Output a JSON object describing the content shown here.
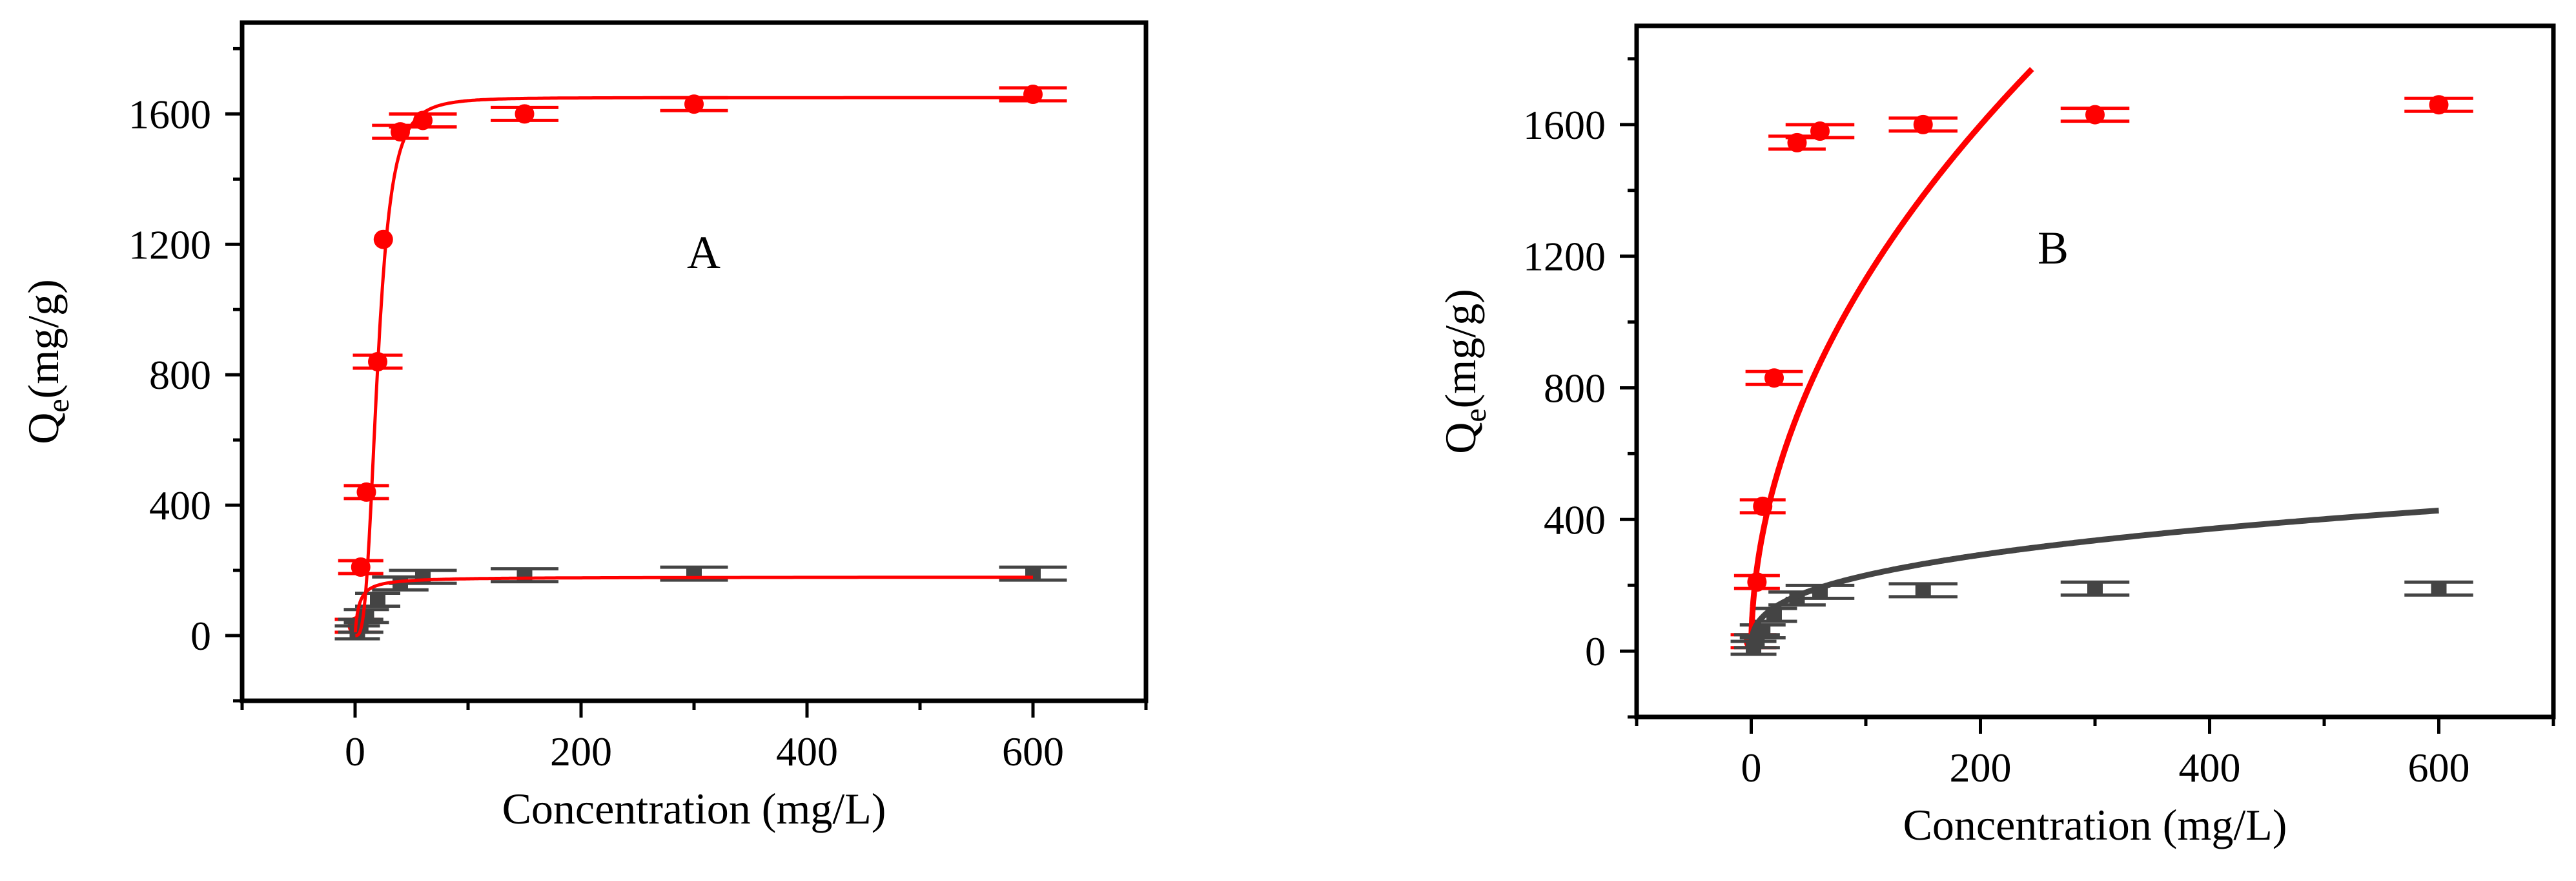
{
  "chart_data": [
    {
      "type": "scatter",
      "panel_label": "A",
      "xlabel": "Concentration (mg/L)",
      "ylabel": {
        "main": "Q",
        "sub": "e",
        "rest": "(mg/g)"
      },
      "xlim": [
        -100,
        700
      ],
      "ylim": [
        -200,
        1880
      ],
      "xticks": [
        0,
        200,
        400,
        600
      ],
      "yticks": [
        0,
        400,
        800,
        1200,
        1600
      ],
      "series": [
        {
          "marker": "circle",
          "color": "#ff0000",
          "x": [
            2,
            5,
            10,
            20,
            25,
            40,
            60,
            150,
            300,
            600
          ],
          "y": [
            30,
            210,
            440,
            840,
            1215,
            1545,
            1580,
            1600,
            1630,
            1660
          ],
          "xerr": [
            20,
            20,
            20,
            22,
            0,
            25,
            30,
            30,
            30,
            30
          ],
          "fit": "logistic"
        },
        {
          "marker": "square",
          "color": "#444444",
          "x": [
            2,
            5,
            10,
            20,
            40,
            60,
            150,
            300,
            600
          ],
          "y": [
            10,
            30,
            60,
            110,
            160,
            180,
            185,
            190,
            190
          ],
          "xerr": [
            20,
            20,
            20,
            20,
            25,
            30,
            30,
            30,
            30
          ],
          "fit": "langmuir"
        }
      ],
      "fits": [
        {
          "color": "#ff0000",
          "model": "logistic",
          "qmax": 1650,
          "x0": 20,
          "p": 3.2
        },
        {
          "color": "#ff0000",
          "model": "langmuir",
          "qmax": 180,
          "k": 0.3
        }
      ]
    },
    {
      "type": "scatter",
      "panel_label": "B",
      "xlabel": "Concentration (mg/L)",
      "ylabel": {
        "main": "Q",
        "sub": "e",
        "rest": "(mg/g)"
      },
      "xlim": [
        -100,
        700
      ],
      "ylim": [
        -200,
        1900
      ],
      "xticks": [
        0,
        200,
        400,
        600
      ],
      "yticks": [
        0,
        400,
        800,
        1200,
        1600
      ],
      "series": [
        {
          "marker": "circle",
          "color": "#ff0000",
          "x": [
            2,
            5,
            10,
            20,
            40,
            60,
            150,
            300,
            600
          ],
          "y": [
            30,
            210,
            440,
            830,
            1545,
            1580,
            1600,
            1630,
            1660
          ],
          "xerr": [
            20,
            20,
            20,
            25,
            25,
            30,
            30,
            30,
            30
          ],
          "fit": "freundlich"
        },
        {
          "marker": "square",
          "color": "#444444",
          "x": [
            2,
            5,
            10,
            20,
            40,
            60,
            150,
            300,
            600
          ],
          "y": [
            10,
            30,
            60,
            110,
            160,
            180,
            185,
            190,
            190
          ],
          "xerr": [
            20,
            20,
            20,
            20,
            25,
            30,
            30,
            30,
            30
          ],
          "fit": "freundlich"
        }
      ],
      "fits": [
        {
          "color": "#ff0000",
          "model": "freundlich",
          "k": 113,
          "n": 0.5,
          "xmax": 245
        },
        {
          "color": "#444444",
          "model": "freundlich",
          "k": 47,
          "n": 0.345,
          "xmax": 600
        }
      ]
    }
  ]
}
